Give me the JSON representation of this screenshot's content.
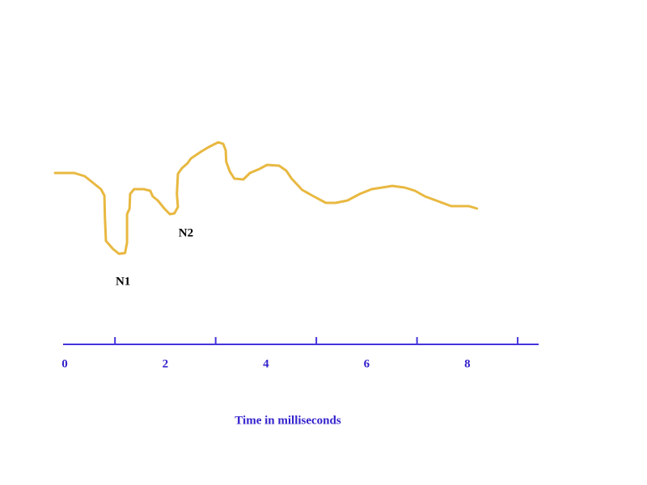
{
  "chart_data": {
    "type": "line",
    "xlabel": "Time in milliseconds",
    "x": [
      -0.19,
      0.19,
      0.4,
      0.56,
      0.72,
      0.79,
      0.8,
      0.82,
      0.96,
      1.08,
      1.2,
      1.24,
      1.24,
      1.29,
      1.3,
      1.38,
      1.57,
      1.7,
      1.75,
      1.85,
      1.98,
      2.09,
      2.18,
      2.25,
      2.23,
      2.25,
      2.33,
      2.44,
      2.51,
      2.7,
      2.86,
      3.05,
      3.15,
      3.2,
      3.21,
      3.28,
      3.37,
      3.55,
      3.68,
      3.87,
      4.02,
      4.26,
      4.4,
      4.51,
      4.72,
      4.95,
      5.19,
      5.38,
      5.62,
      5.86,
      6.1,
      6.51,
      6.75,
      6.96,
      7.16,
      7.42,
      7.68,
      8.03,
      8.19
    ],
    "series": [
      {
        "color": "#e8b840",
        "values": [
          8.6,
          8.6,
          8.2,
          7.4,
          6.6,
          5.8,
          3.2,
          0.2,
          -0.8,
          -1.4,
          -1.3,
          0,
          3.5,
          4.2,
          6.0,
          6.6,
          6.6,
          6.4,
          5.7,
          5.2,
          4.2,
          3.5,
          3.6,
          4.4,
          6.0,
          8.5,
          9.2,
          9.8,
          10.4,
          11.2,
          11.8,
          12.4,
          12.2,
          11.4,
          10.0,
          8.8,
          7.9,
          7.8,
          8.6,
          9.1,
          9.6,
          9.5,
          8.9,
          7.9,
          6.5,
          5.7,
          4.9,
          4.9,
          5.2,
          6.0,
          6.6,
          7.0,
          6.8,
          6.4,
          5.7,
          5.1,
          4.5,
          4.5,
          4.2
        ]
      }
    ],
    "xlim": [
      -0.2,
      9.4
    ],
    "ylim": [
      -5,
      15
    ],
    "xticks": [
      0,
      2,
      4,
      6,
      8
    ],
    "xminorticks": [
      1,
      3,
      5,
      7,
      9
    ],
    "axis_color": "#4433dd",
    "annotations": [
      {
        "text": "N1",
        "x": 1.16,
        "y": -4.9
      },
      {
        "text": "N2",
        "x": 2.41,
        "y": 1.1
      }
    ]
  }
}
